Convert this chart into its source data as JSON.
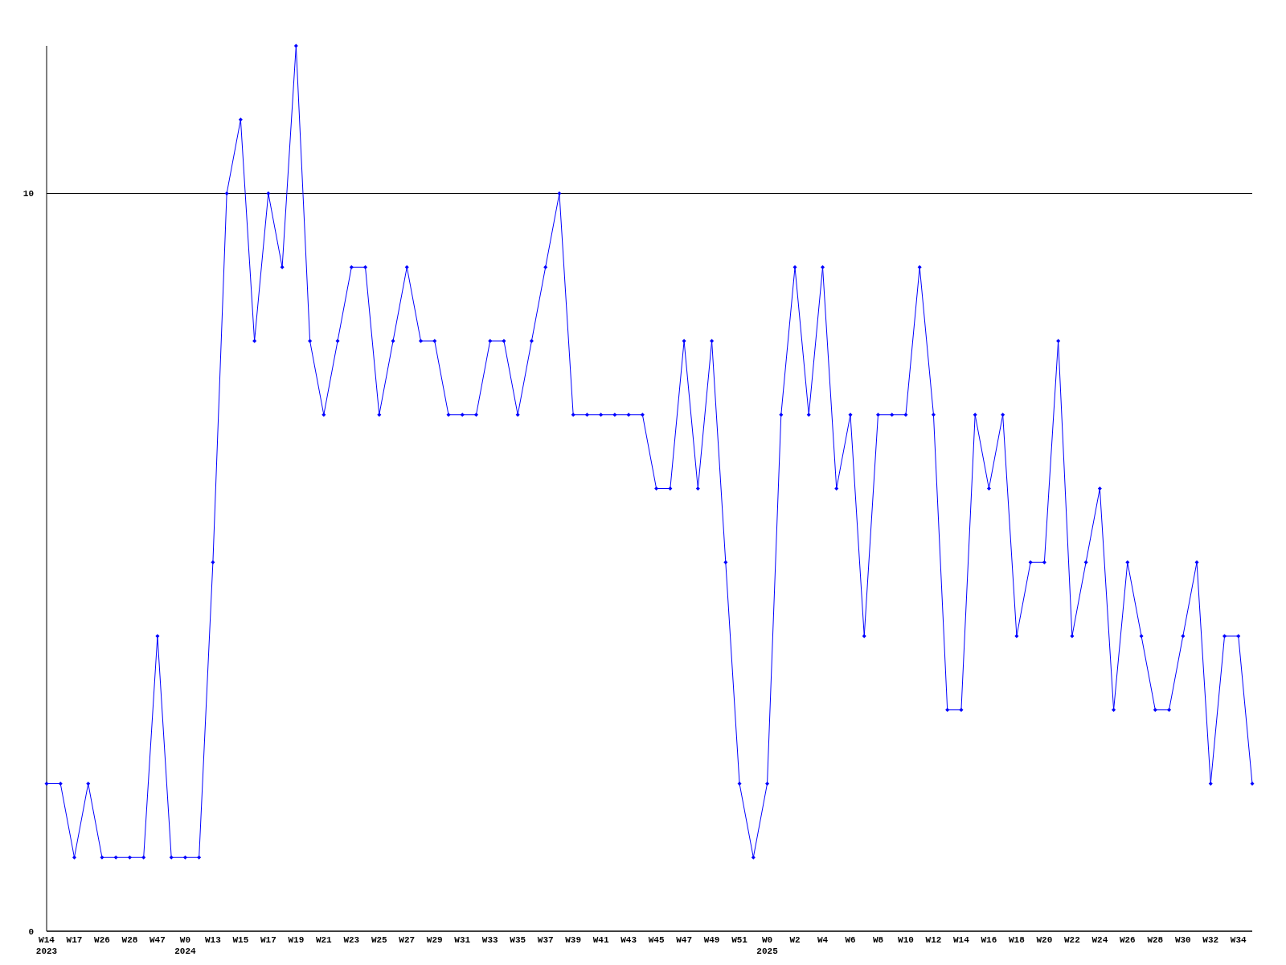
{
  "chart_data": {
    "type": "line",
    "categories": [
      "W14\n2023",
      null,
      "W17",
      null,
      "W26",
      null,
      "W28",
      null,
      "W47",
      null,
      "W0\n2024",
      null,
      "W13",
      null,
      "W15",
      null,
      "W17",
      null,
      "W19",
      null,
      "W21",
      null,
      "W23",
      null,
      "W25",
      null,
      "W27",
      null,
      "W29",
      null,
      "W31",
      null,
      "W33",
      null,
      "W35",
      null,
      "W37",
      null,
      "W39",
      null,
      "W41",
      null,
      "W43",
      null,
      "W45",
      null,
      "W47",
      null,
      "W49",
      null,
      "W51",
      null,
      "W0\n2025",
      null,
      "W2",
      null,
      "W4",
      null,
      "W6",
      null,
      "W8",
      null,
      "W10",
      null,
      "W12",
      null,
      "W14",
      null,
      "W16",
      null,
      "W18",
      null,
      "W20",
      null,
      "W22",
      null,
      "W24",
      null,
      "W26",
      null,
      "W28",
      null,
      "W30",
      null,
      "W32",
      null,
      "W34",
      null
    ],
    "series": [
      {
        "color": "#0000ff",
        "values": [
          2,
          2,
          1,
          2,
          1,
          1,
          1,
          1,
          4,
          1,
          1,
          1,
          5,
          10,
          11,
          8,
          10,
          9,
          12,
          8,
          7,
          8,
          9,
          9,
          7,
          8,
          9,
          8,
          8,
          7,
          7,
          7,
          8,
          8,
          7,
          8,
          9,
          10,
          7,
          7,
          7,
          7,
          7,
          7,
          6,
          6,
          8,
          6,
          8,
          5,
          2,
          1,
          2,
          7,
          9,
          7,
          9,
          6,
          7,
          4,
          7,
          7,
          7,
          9,
          7,
          3,
          3,
          7,
          6,
          7,
          4,
          5,
          5,
          8,
          4,
          5,
          6,
          3,
          5,
          4,
          3,
          3,
          4,
          5,
          2,
          4,
          4,
          2
        ]
      }
    ],
    "ylim": [
      0,
      12
    ],
    "yticks": [
      0,
      10
    ],
    "grid": "y",
    "marker": "diamond",
    "line_style": "solid"
  }
}
